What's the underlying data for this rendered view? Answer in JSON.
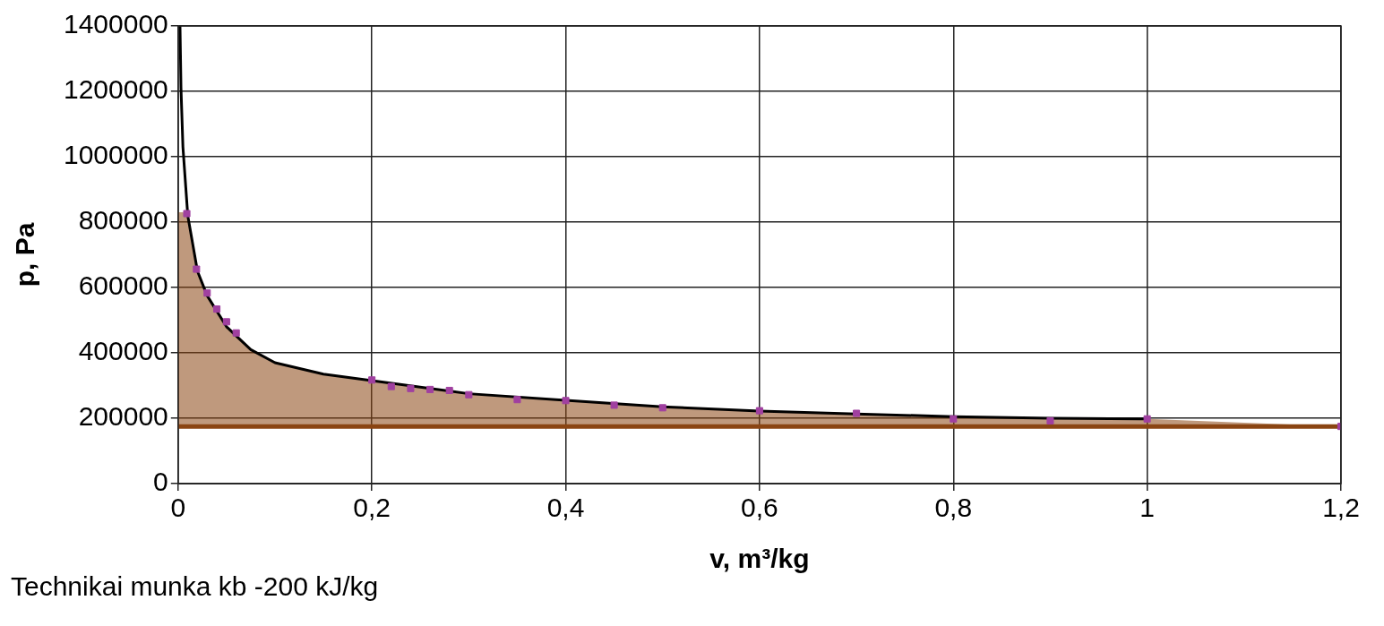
{
  "chart_data": {
    "type": "line",
    "xlabel": "v, m³/kg",
    "ylabel": "p, Pa",
    "xlim": [
      0,
      1.2
    ],
    "xticks": [
      0,
      {
        "value": 0.2,
        "label": "0,2"
      },
      {
        "value": 0.4,
        "label": "0,4"
      },
      {
        "value": 0.6,
        "label": "0,6"
      },
      {
        "value": 0.8,
        "label": "0,8"
      },
      1,
      {
        "value": 1.2,
        "label": "1,2"
      }
    ],
    "ylim": [
      0,
      1400000
    ],
    "yticks": [
      0,
      200000,
      400000,
      600000,
      800000,
      1000000,
      1200000,
      1400000
    ],
    "grid": true,
    "legend": false,
    "series": [
      {
        "type": "area",
        "color": "#8b4513",
        "x": [
          0,
          0.005,
          0.01,
          0.02,
          0.03,
          0.05,
          0.075,
          0.1,
          0.15,
          0.2,
          0.3,
          0.4,
          0.5,
          0.6,
          0.7,
          0.8,
          0.9,
          1.0,
          1.2
        ],
        "values": [
          830000,
          830000,
          820000,
          650000,
          575000,
          480000,
          410000,
          370000,
          335000,
          315000,
          275000,
          255000,
          235000,
          222000,
          213000,
          205000,
          200000,
          198000,
          175000
        ]
      },
      {
        "color": "#000000",
        "marker": "none",
        "x": [
          0.002,
          0.003,
          0.005,
          0.01,
          0.02,
          0.03,
          0.05,
          0.075,
          0.1,
          0.15,
          0.2,
          0.3,
          0.4,
          0.5,
          0.6,
          0.7,
          0.8,
          0.9,
          1.0
        ],
        "values": [
          1400000,
          1210000,
          1030000,
          820000,
          650000,
          575000,
          480000,
          410000,
          370000,
          335000,
          315000,
          275000,
          255000,
          235000,
          222000,
          213000,
          205000,
          200000,
          198000
        ]
      },
      {
        "type": "scatter",
        "color": "#a040a0",
        "marker": "square",
        "x": [
          0.009,
          0.019,
          0.03,
          0.04,
          0.05,
          0.06,
          0.2,
          0.22,
          0.24,
          0.26,
          0.28,
          0.3,
          0.35,
          0.4,
          0.45,
          0.5,
          0.6,
          0.7,
          0.8,
          0.9,
          1.0,
          1.2
        ],
        "values": [
          826000,
          656000,
          583000,
          534000,
          495000,
          461000,
          317000,
          297000,
          291000,
          288000,
          285000,
          272000,
          257000,
          254000,
          240000,
          232000,
          223000,
          215000,
          198000,
          192000,
          198000,
          175000
        ]
      }
    ],
    "ref_lines": [
      {
        "axis": "y",
        "value": 175000,
        "color": "#8b4513"
      }
    ],
    "annotations": [
      "Technikai munka kb -200 kJ/kg"
    ]
  }
}
